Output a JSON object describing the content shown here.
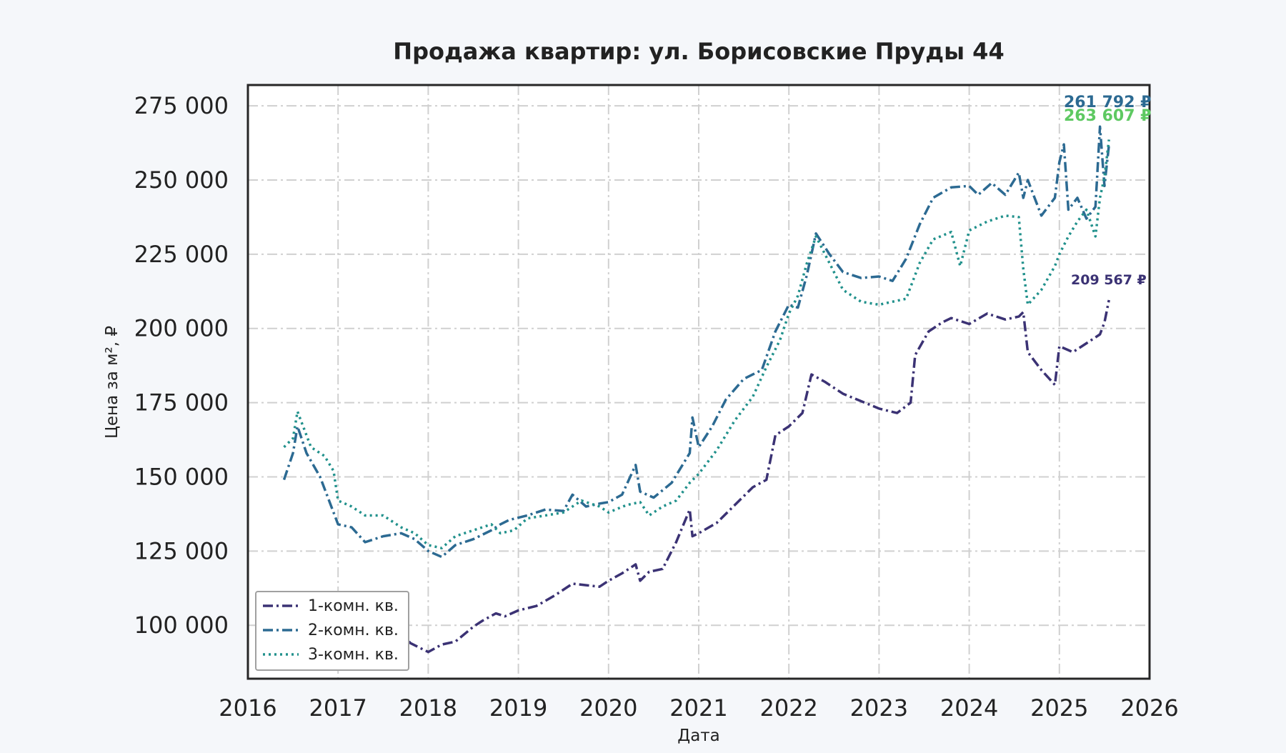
{
  "chart_data": {
    "type": "line",
    "title": "Продажа квартир: ул. Борисовские Пруды 44",
    "xlabel": "Дата",
    "ylabel": "Цена за м², ₽",
    "xlim": [
      2016.0,
      2026.0
    ],
    "ylim": [
      82000,
      282000
    ],
    "x_ticks": [
      "2016",
      "2017",
      "2018",
      "2019",
      "2020",
      "2021",
      "2022",
      "2023",
      "2024",
      "2025",
      "2026"
    ],
    "y_ticks": [
      "100 000",
      "125 000",
      "150 000",
      "175 000",
      "200 000",
      "225 000",
      "250 000",
      "275 000"
    ],
    "y_tick_values": [
      100000,
      125000,
      150000,
      175000,
      200000,
      225000,
      250000,
      275000
    ],
    "grid": true,
    "legend_position": "bottom-left",
    "series": [
      {
        "name": "1-комн. кв.",
        "color": "#3b3274",
        "dash": "dashdot",
        "end_label": "209 567 ₽",
        "x": [
          2016.4,
          2016.55,
          2016.7,
          2016.9,
          2017.0,
          2017.15,
          2017.3,
          2017.5,
          2017.7,
          2017.8,
          2017.9,
          2018.0,
          2018.15,
          2018.3,
          2018.5,
          2018.6,
          2018.75,
          2018.85,
          2019.0,
          2019.2,
          2019.4,
          2019.6,
          2019.75,
          2019.9,
          2020.0,
          2020.15,
          2020.3,
          2020.35,
          2020.45,
          2020.6,
          2020.75,
          2020.9,
          2020.93,
          2021.0,
          2021.2,
          2021.4,
          2021.6,
          2021.75,
          2021.85,
          2022.0,
          2022.15,
          2022.25,
          2022.4,
          2022.6,
          2022.8,
          2023.0,
          2023.2,
          2023.35,
          2023.4,
          2023.55,
          2023.7,
          2023.8,
          2024.0,
          2024.2,
          2024.4,
          2024.55,
          2024.6,
          2024.65,
          2024.8,
          2024.95,
          2025.0,
          2025.15,
          2025.3,
          2025.45,
          2025.5,
          2025.55
        ],
        "values": [
          104000,
          104500,
          103000,
          100000,
          98500,
          97500,
          97000,
          96500,
          98000,
          94000,
          92500,
          91000,
          93500,
          94500,
          99500,
          101500,
          104000,
          103000,
          105000,
          106500,
          110000,
          114000,
          113500,
          113000,
          115000,
          117500,
          120500,
          115000,
          118000,
          119000,
          128000,
          139000,
          130000,
          131000,
          134500,
          140500,
          146500,
          149000,
          164000,
          167000,
          171500,
          184500,
          182000,
          178000,
          175500,
          173000,
          171500,
          175000,
          191000,
          199000,
          202000,
          203500,
          201500,
          205000,
          203000,
          204000,
          205500,
          192000,
          186000,
          181000,
          194000,
          192000,
          195000,
          198000,
          202000,
          209567
        ]
      },
      {
        "name": "2-комн. кв.",
        "color": "#2c6a92",
        "dash": "dashdot",
        "end_label": "261 792 ₽",
        "x": [
          2016.4,
          2016.5,
          2016.55,
          2016.65,
          2016.8,
          2016.9,
          2017.0,
          2017.15,
          2017.3,
          2017.5,
          2017.7,
          2017.85,
          2018.0,
          2018.15,
          2018.3,
          2018.5,
          2018.7,
          2018.8,
          2018.9,
          2019.1,
          2019.3,
          2019.5,
          2019.6,
          2019.75,
          2019.9,
          2020.0,
          2020.15,
          2020.3,
          2020.35,
          2020.5,
          2020.7,
          2020.9,
          2020.93,
          2021.0,
          2021.15,
          2021.3,
          2021.5,
          2021.7,
          2021.85,
          2022.0,
          2022.1,
          2022.2,
          2022.3,
          2022.45,
          2022.6,
          2022.8,
          2023.0,
          2023.15,
          2023.3,
          2023.45,
          2023.6,
          2023.8,
          2024.0,
          2024.1,
          2024.25,
          2024.4,
          2024.55,
          2024.6,
          2024.65,
          2024.8,
          2024.95,
          2025.0,
          2025.05,
          2025.1,
          2025.2,
          2025.3,
          2025.4,
          2025.45,
          2025.5,
          2025.55
        ],
        "values": [
          149000,
          158000,
          167000,
          158000,
          150000,
          142000,
          134000,
          133000,
          128000,
          130000,
          131000,
          129000,
          125000,
          123000,
          127000,
          129000,
          132000,
          134000,
          135500,
          137000,
          139000,
          138500,
          144000,
          140000,
          141000,
          141500,
          144000,
          154000,
          145000,
          143000,
          148000,
          158000,
          170000,
          160000,
          167000,
          176000,
          183000,
          186000,
          199000,
          208000,
          207000,
          218000,
          232000,
          225000,
          219000,
          217000,
          217500,
          216000,
          223500,
          235000,
          244000,
          247500,
          248000,
          245000,
          249000,
          245000,
          252500,
          244000,
          250000,
          238000,
          244000,
          256000,
          262000,
          240000,
          244000,
          237000,
          241000,
          268000,
          248000,
          261792
        ]
      },
      {
        "name": "3-комн. кв.",
        "color": "#21918c",
        "dash": "dotted",
        "end_label": "263 607 ₽",
        "label_color": "#5ec962",
        "x": [
          2016.4,
          2016.5,
          2016.55,
          2016.7,
          2016.85,
          2016.95,
          2017.0,
          2017.15,
          2017.3,
          2017.5,
          2017.7,
          2017.85,
          2018.0,
          2018.15,
          2018.3,
          2018.5,
          2018.7,
          2018.8,
          2018.95,
          2019.1,
          2019.3,
          2019.5,
          2019.7,
          2019.9,
          2020.0,
          2020.2,
          2020.35,
          2020.45,
          2020.6,
          2020.75,
          2020.9,
          2021.0,
          2021.2,
          2021.4,
          2021.6,
          2021.75,
          2021.9,
          2022.0,
          2022.1,
          2022.2,
          2022.3,
          2022.45,
          2022.6,
          2022.8,
          2023.0,
          2023.15,
          2023.3,
          2023.45,
          2023.6,
          2023.8,
          2023.9,
          2024.0,
          2024.2,
          2024.4,
          2024.55,
          2024.6,
          2024.65,
          2024.8,
          2024.95,
          2025.0,
          2025.1,
          2025.2,
          2025.3,
          2025.4,
          2025.45,
          2025.5,
          2025.55
        ],
        "values": [
          160000,
          163000,
          172000,
          160000,
          157000,
          152000,
          142000,
          140000,
          137000,
          137000,
          133000,
          131000,
          127000,
          126000,
          130000,
          132000,
          134000,
          131000,
          132000,
          136000,
          137000,
          138000,
          142000,
          140000,
          138000,
          140500,
          141500,
          137000,
          140000,
          142000,
          148000,
          151000,
          159000,
          169000,
          177000,
          187000,
          196000,
          205000,
          211000,
          222000,
          231000,
          222000,
          213000,
          209000,
          208000,
          209000,
          210000,
          222000,
          230000,
          232500,
          221000,
          233000,
          236000,
          238000,
          237500,
          220000,
          208000,
          213000,
          221000,
          225000,
          231000,
          236000,
          240000,
          231000,
          244000,
          251000,
          263607
        ]
      }
    ]
  }
}
